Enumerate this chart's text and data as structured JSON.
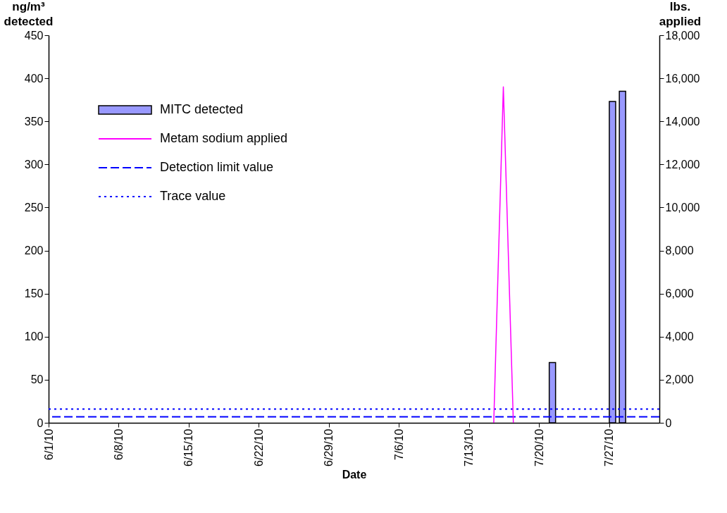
{
  "chart_data": {
    "type": "bar",
    "xlabel": "Date",
    "ylabel": "ng/m³ detected",
    "y2label": "lbs. applied",
    "xlim": [
      "--06-01",
      "--08-01"
    ],
    "xticks": [
      {
        "value": "--06-01",
        "label": "6/1/10"
      },
      {
        "value": "--06-08",
        "label": "6/8/10"
      },
      {
        "value": "--06-15",
        "label": "6/15/10"
      },
      {
        "value": "--06-22",
        "label": "6/22/10"
      },
      {
        "value": "--06-29",
        "label": "6/29/10"
      },
      {
        "value": "--07-06",
        "label": "7/6/10"
      },
      {
        "value": "--07-13",
        "label": "7/13/10"
      },
      {
        "value": "--07-20",
        "label": "7/20/10"
      },
      {
        "value": "--07-27",
        "label": "7/27/10"
      }
    ],
    "ylim": [
      0,
      450
    ],
    "yticks": [
      0,
      50,
      100,
      150,
      200,
      250,
      300,
      350,
      400,
      450
    ],
    "y2lim": [
      0,
      18000
    ],
    "y2ticks": [
      {
        "value": 0,
        "label": "0"
      },
      {
        "value": 2000,
        "label": "2,000"
      },
      {
        "value": 4000,
        "label": "4,000"
      },
      {
        "value": 6000,
        "label": "6,000"
      },
      {
        "value": 8000,
        "label": "8,000"
      },
      {
        "value": 10000,
        "label": "10,000"
      },
      {
        "value": 12000,
        "label": "12,000"
      },
      {
        "value": 14000,
        "label": "14,000"
      },
      {
        "value": 16000,
        "label": "16,000"
      },
      {
        "value": 18000,
        "label": "18,000"
      }
    ],
    "series": [
      {
        "name": "MITC detected",
        "color": "#9999ff",
        "x": [
          "--07-21",
          "--07-27",
          "--07-28"
        ],
        "values": [
          70,
          373,
          385
        ]
      },
      {
        "name": "Metam sodium applied",
        "type": "line",
        "axis": "y2",
        "color": "#ff00ff",
        "x": [
          "--07-15T11:00",
          "--07-16T10:00",
          "--07-17T10:00"
        ],
        "values": [
          0,
          15600,
          0
        ]
      }
    ],
    "ref_lines": [
      {
        "axis": "y",
        "value": 7,
        "label": "Detection limit value",
        "color": "#0000ff",
        "line_style": "dashed"
      },
      {
        "axis": "y",
        "value": 16,
        "label": "Trace value",
        "color": "#0000ff",
        "line_style": "dotted"
      }
    ],
    "legend": "top left",
    "grid": false
  }
}
